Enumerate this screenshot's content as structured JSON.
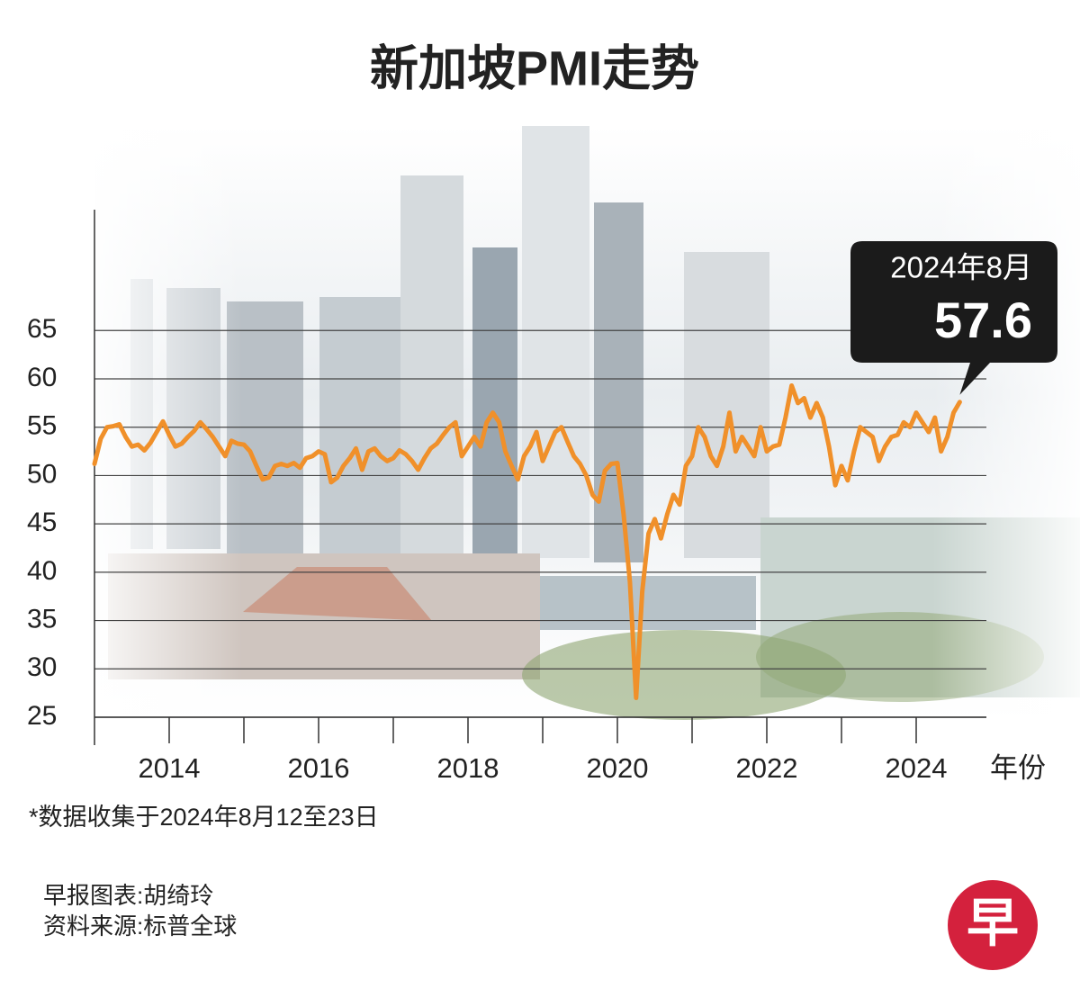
{
  "chart_data": {
    "type": "line",
    "title": "新加坡PMI走势",
    "x_label": "年份",
    "footnote": "*数据收集于2024年8月12至23日",
    "credits": [
      "早报图表:胡绮玲",
      "资料来源:标普全球"
    ],
    "logo": "早",
    "xlim": [
      2013,
      2025
    ],
    "xticks": [
      2014,
      2016,
      2018,
      2020,
      2022,
      2024
    ],
    "xminorticks": [
      2015,
      2017,
      2019,
      2021,
      2023
    ],
    "ylim": [
      25,
      77.5
    ],
    "yticks": [
      25,
      30,
      35,
      40,
      45,
      50,
      55,
      60,
      65
    ],
    "grid": true,
    "x": [
      2013,
      2013.083,
      2013.167,
      2013.25,
      2013.333,
      2013.417,
      2013.5,
      2013.583,
      2013.667,
      2013.75,
      2013.833,
      2013.917,
      2014,
      2014.083,
      2014.167,
      2014.25,
      2014.333,
      2014.417,
      2014.5,
      2014.583,
      2014.667,
      2014.75,
      2014.833,
      2014.917,
      2015,
      2015.083,
      2015.167,
      2015.25,
      2015.333,
      2015.417,
      2015.5,
      2015.583,
      2015.667,
      2015.75,
      2015.833,
      2015.917,
      2016,
      2016.083,
      2016.167,
      2016.25,
      2016.333,
      2016.417,
      2016.5,
      2016.583,
      2016.667,
      2016.75,
      2016.833,
      2016.917,
      2017,
      2017.083,
      2017.167,
      2017.25,
      2017.333,
      2017.417,
      2017.5,
      2017.583,
      2017.667,
      2017.75,
      2017.833,
      2017.917,
      2018,
      2018.083,
      2018.167,
      2018.25,
      2018.333,
      2018.417,
      2018.5,
      2018.583,
      2018.667,
      2018.75,
      2018.833,
      2018.917,
      2019,
      2019.083,
      2019.167,
      2019.25,
      2019.333,
      2019.417,
      2019.5,
      2019.583,
      2019.667,
      2019.75,
      2019.833,
      2019.917,
      2020,
      2020.083,
      2020.167,
      2020.25,
      2020.333,
      2020.417,
      2020.5,
      2020.583,
      2020.667,
      2020.75,
      2020.833,
      2020.917,
      2021,
      2021.083,
      2021.167,
      2021.25,
      2021.333,
      2021.417,
      2021.5,
      2021.583,
      2021.667,
      2021.75,
      2021.833,
      2021.917,
      2022,
      2022.083,
      2022.167,
      2022.25,
      2022.333,
      2022.417,
      2022.5,
      2022.583,
      2022.667,
      2022.75,
      2022.833,
      2022.917,
      2023,
      2023.083,
      2023.167,
      2023.25,
      2023.333,
      2023.417,
      2023.5,
      2023.583,
      2023.667,
      2023.75,
      2023.833,
      2023.917,
      2024,
      2024.083,
      2024.167,
      2024.25,
      2024.333,
      2024.417,
      2024.5,
      2024.583
    ],
    "series": [
      {
        "name": "PMI",
        "color": "#f0902a",
        "values": [
          51.2,
          53.8,
          55.0,
          55.1,
          55.3,
          54.0,
          53.0,
          53.2,
          52.6,
          53.4,
          54.5,
          55.6,
          54.2,
          53.0,
          53.3,
          54.0,
          54.6,
          55.5,
          54.8,
          54.0,
          53.0,
          52.0,
          53.6,
          53.3,
          53.2,
          52.5,
          51.0,
          49.6,
          49.8,
          51.0,
          51.2,
          51.0,
          51.3,
          50.8,
          51.8,
          52.0,
          52.5,
          52.2,
          49.3,
          49.8,
          51.0,
          51.8,
          52.8,
          50.6,
          52.5,
          52.8,
          52.0,
          51.5,
          51.8,
          52.6,
          52.2,
          51.5,
          50.6,
          51.8,
          52.8,
          53.3,
          54.2,
          55.0,
          55.5,
          52.0,
          53.0,
          54.0,
          53.0,
          55.5,
          56.5,
          55.5,
          52.5,
          51.0,
          49.6,
          52.0,
          53.0,
          54.5,
          51.5,
          53.0,
          54.5,
          55.0,
          53.5,
          52.0,
          51.2,
          50.0,
          48.0,
          47.3,
          50.5,
          51.2,
          51.3,
          46.0,
          39.0,
          27.0,
          38.0,
          44.0,
          45.5,
          43.5,
          46.0,
          48.0,
          47.0,
          51.0,
          52.0,
          55.0,
          54.0,
          52.0,
          51.0,
          53.0,
          56.5,
          52.5,
          54.0,
          53.0,
          52.0,
          55.0,
          52.5,
          53.0,
          53.2,
          56.0,
          59.3,
          57.5,
          58.0,
          56.0,
          57.5,
          56.0,
          53.0,
          49.0,
          51.0,
          49.5,
          52.5,
          55.0,
          54.5,
          54.0,
          51.5,
          53.0,
          54.0,
          54.2,
          55.5,
          55.0,
          56.5,
          55.5,
          54.5,
          56.0,
          52.5,
          54.0,
          56.5,
          57.6
        ]
      }
    ],
    "annotation": {
      "label": "2024年8月",
      "x": 2024.583,
      "value": 57.6
    }
  }
}
